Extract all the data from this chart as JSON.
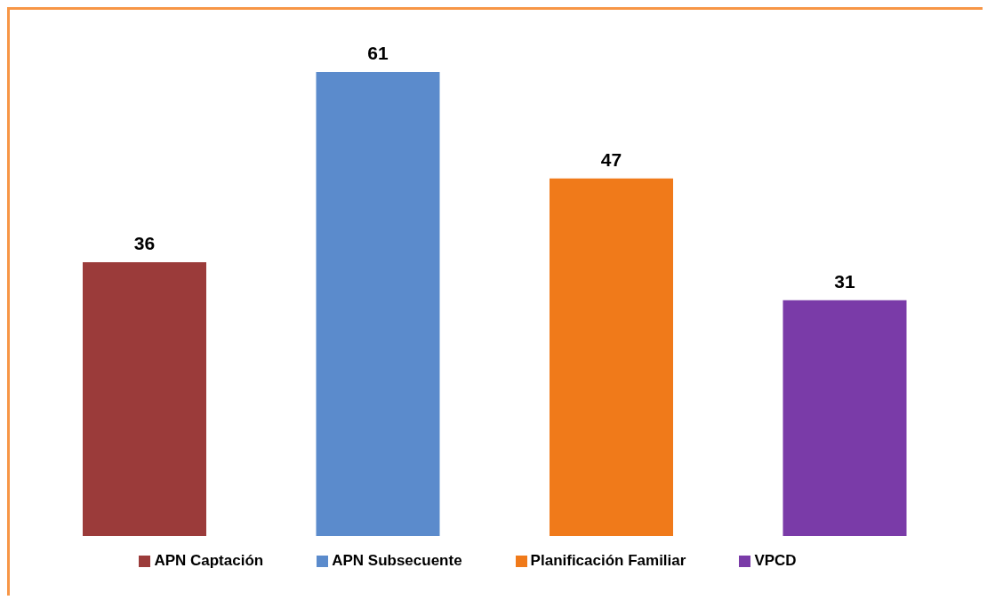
{
  "chart_data": {
    "type": "bar",
    "categories": [
      null,
      null,
      null,
      null
    ],
    "stacked": true,
    "data_labels": true,
    "legend": "bottom",
    "series": [
      {
        "name": "APN Captación",
        "color": "#9b3b3a",
        "values": [
          36,
          null,
          null,
          null
        ]
      },
      {
        "name": "APN Subsecuente",
        "color": "#5b8bcc",
        "values": [
          null,
          61,
          null,
          null
        ]
      },
      {
        "name": "Planificación Familiar",
        "color": "#f07a1a",
        "values": [
          null,
          null,
          47,
          null
        ]
      },
      {
        "name": "VPCD",
        "color": "#7a3ba8",
        "values": [
          null,
          null,
          null,
          31
        ]
      }
    ]
  }
}
